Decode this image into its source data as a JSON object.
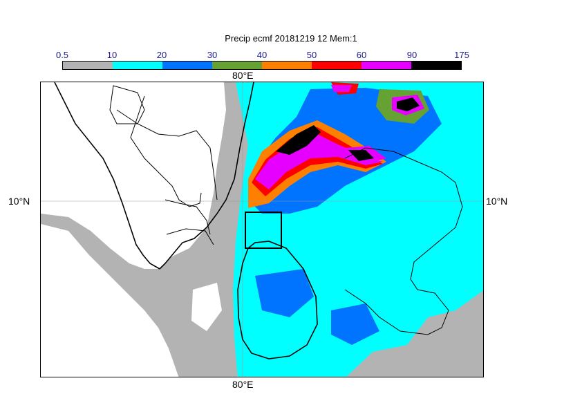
{
  "title": "Precip ecmf 20181219 12 Mem:1",
  "colorbar": {
    "labels": [
      "0.5",
      "10",
      "20",
      "30",
      "40",
      "50",
      "60",
      "90",
      "175"
    ],
    "colors": [
      "#b3b3b3",
      "#00ffff",
      "#0073ff",
      "#66a133",
      "#ff8000",
      "#ff0000",
      "#e600ff",
      "#000000"
    ]
  },
  "axes": {
    "top_lon": "80°E",
    "bottom_lon": "80°E",
    "left_lat": "10°N",
    "right_lat": "10°N"
  }
}
